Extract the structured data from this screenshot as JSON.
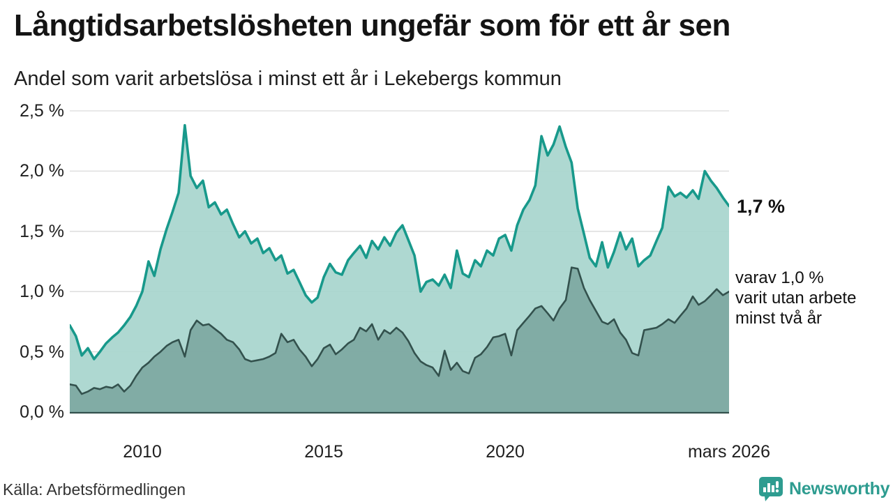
{
  "title": "Långtidsarbetslösheten ungefär som för ett år sen",
  "subtitle": "Andel som varit arbetslösa i minst ett år i Lekebergs kommun",
  "source": "Källa: Arbetsförmedlingen",
  "logo": {
    "text": "Newsworthy",
    "icon": "bar-chart-speech-bubble",
    "color": "#2e9c90"
  },
  "annotations": {
    "latest_total": "1,7 %",
    "secondary": [
      "varav 1,0 %",
      "varit utan arbete",
      "minst två år"
    ]
  },
  "colors": {
    "total_line": "#18998b",
    "total_fill": "#a8d5ce",
    "two_year_line": "#33514d",
    "two_year_fill": "#7ea8a1",
    "gridline": "#dadada",
    "axis_line": "#33514d",
    "text": "#1f1f1f"
  },
  "chart_data": {
    "type": "area",
    "title": "Långtidsarbetslösheten ungefär som för ett år sen",
    "xlabel": "",
    "ylabel": "",
    "x_domain": [
      2008.0,
      2026.17
    ],
    "ylim": [
      0,
      2.5
    ],
    "grid": "horizontal",
    "legend_position": "none",
    "y_ticks": [
      {
        "value": 0.0,
        "label": "0,0 %"
      },
      {
        "value": 0.5,
        "label": "0,5 %"
      },
      {
        "value": 1.0,
        "label": "1,0 %"
      },
      {
        "value": 1.5,
        "label": "1,5 %"
      },
      {
        "value": 2.0,
        "label": "2,0 %"
      },
      {
        "value": 2.5,
        "label": "2,5 %"
      }
    ],
    "x_ticks": [
      {
        "x": 2010,
        "label": "2010"
      },
      {
        "x": 2015,
        "label": "2015"
      },
      {
        "x": 2020,
        "label": "2020"
      },
      {
        "x": 2026.17,
        "label": "mars 2026"
      }
    ],
    "x_unit": "year (monthly data, 2-month sampling)",
    "y_unit": "percent",
    "x": [
      2008.0,
      2008.17,
      2008.33,
      2008.5,
      2008.67,
      2008.83,
      2009.0,
      2009.17,
      2009.33,
      2009.5,
      2009.67,
      2009.83,
      2010.0,
      2010.17,
      2010.33,
      2010.5,
      2010.67,
      2010.83,
      2011.0,
      2011.17,
      2011.33,
      2011.5,
      2011.67,
      2011.83,
      2012.0,
      2012.17,
      2012.33,
      2012.5,
      2012.67,
      2012.83,
      2013.0,
      2013.17,
      2013.33,
      2013.5,
      2013.67,
      2013.83,
      2014.0,
      2014.17,
      2014.33,
      2014.5,
      2014.67,
      2014.83,
      2015.0,
      2015.17,
      2015.33,
      2015.5,
      2015.67,
      2015.83,
      2016.0,
      2016.17,
      2016.33,
      2016.5,
      2016.67,
      2016.83,
      2017.0,
      2017.17,
      2017.33,
      2017.5,
      2017.67,
      2017.83,
      2018.0,
      2018.17,
      2018.33,
      2018.5,
      2018.67,
      2018.83,
      2019.0,
      2019.17,
      2019.33,
      2019.5,
      2019.67,
      2019.83,
      2020.0,
      2020.17,
      2020.33,
      2020.5,
      2020.67,
      2020.83,
      2021.0,
      2021.17,
      2021.33,
      2021.5,
      2021.67,
      2021.83,
      2022.0,
      2022.17,
      2022.33,
      2022.5,
      2022.67,
      2022.83,
      2023.0,
      2023.17,
      2023.33,
      2023.5,
      2023.67,
      2023.83,
      2024.0,
      2024.17,
      2024.33,
      2024.5,
      2024.67,
      2024.83,
      2025.0,
      2025.17,
      2025.33,
      2025.5,
      2025.67,
      2025.83,
      2026.0,
      2026.17
    ],
    "series": [
      {
        "name": "Andel arbetslösa minst ett år",
        "line_color": "#18998b",
        "fill_color": "#a8d5ce",
        "latest_value": 1.7,
        "values": [
          0.72,
          0.63,
          0.47,
          0.53,
          0.44,
          0.5,
          0.57,
          0.62,
          0.66,
          0.72,
          0.79,
          0.88,
          1.0,
          1.25,
          1.13,
          1.35,
          1.52,
          1.66,
          1.82,
          2.38,
          1.96,
          1.86,
          1.92,
          1.7,
          1.74,
          1.64,
          1.68,
          1.56,
          1.45,
          1.5,
          1.4,
          1.44,
          1.32,
          1.36,
          1.26,
          1.3,
          1.15,
          1.18,
          1.08,
          0.97,
          0.91,
          0.95,
          1.12,
          1.23,
          1.16,
          1.14,
          1.26,
          1.32,
          1.38,
          1.28,
          1.42,
          1.35,
          1.45,
          1.38,
          1.49,
          1.55,
          1.43,
          1.3,
          1.0,
          1.08,
          1.1,
          1.05,
          1.14,
          1.03,
          1.34,
          1.15,
          1.12,
          1.26,
          1.21,
          1.34,
          1.3,
          1.44,
          1.47,
          1.34,
          1.55,
          1.68,
          1.76,
          1.88,
          2.29,
          2.13,
          2.22,
          2.37,
          2.2,
          2.07,
          1.69,
          1.48,
          1.28,
          1.21,
          1.41,
          1.2,
          1.33,
          1.49,
          1.35,
          1.44,
          1.21,
          1.26,
          1.3,
          1.42,
          1.53,
          1.87,
          1.79,
          1.82,
          1.78,
          1.84,
          1.77,
          2.0,
          1.92,
          1.86,
          1.78,
          1.71
        ]
      },
      {
        "name": "varav utan arbete minst två år",
        "line_color": "#33514d",
        "fill_color": "#7ea8a1",
        "latest_value": 1.0,
        "values": [
          0.23,
          0.22,
          0.15,
          0.17,
          0.2,
          0.19,
          0.21,
          0.2,
          0.23,
          0.17,
          0.22,
          0.3,
          0.37,
          0.41,
          0.46,
          0.5,
          0.55,
          0.58,
          0.6,
          0.46,
          0.68,
          0.76,
          0.72,
          0.73,
          0.69,
          0.65,
          0.6,
          0.58,
          0.52,
          0.44,
          0.42,
          0.43,
          0.44,
          0.46,
          0.49,
          0.65,
          0.58,
          0.6,
          0.52,
          0.46,
          0.38,
          0.44,
          0.53,
          0.56,
          0.48,
          0.52,
          0.57,
          0.6,
          0.7,
          0.67,
          0.73,
          0.6,
          0.68,
          0.65,
          0.7,
          0.66,
          0.59,
          0.49,
          0.42,
          0.39,
          0.37,
          0.3,
          0.51,
          0.35,
          0.41,
          0.34,
          0.32,
          0.45,
          0.48,
          0.54,
          0.62,
          0.63,
          0.65,
          0.47,
          0.68,
          0.74,
          0.8,
          0.86,
          0.88,
          0.82,
          0.76,
          0.86,
          0.93,
          1.2,
          1.19,
          1.03,
          0.93,
          0.84,
          0.75,
          0.73,
          0.77,
          0.66,
          0.6,
          0.49,
          0.47,
          0.68,
          0.69,
          0.7,
          0.73,
          0.77,
          0.74,
          0.8,
          0.86,
          0.96,
          0.89,
          0.92,
          0.97,
          1.02,
          0.97,
          1.0
        ]
      }
    ]
  }
}
